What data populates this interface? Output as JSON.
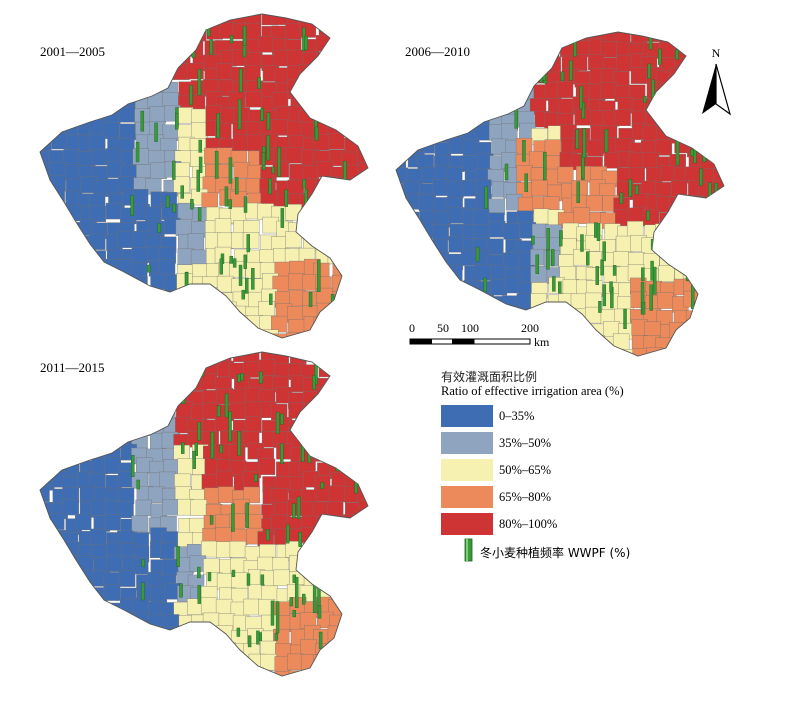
{
  "maps": [
    {
      "period": "2001—2005"
    },
    {
      "period": "2006—2010"
    },
    {
      "period": "2011—2015"
    }
  ],
  "north_arrow": {
    "label": "N"
  },
  "scale_bar": {
    "ticks": [
      "0",
      "50",
      "100",
      "200"
    ],
    "unit": "km"
  },
  "legend": {
    "title_cn": "有效灌溉面积比例",
    "title_en": "Ratio of effective irrigation area (%)",
    "classes": [
      {
        "label": "0–35%",
        "color": "#3f6db3"
      },
      {
        "label": "35%–50%",
        "color": "#8fa4be"
      },
      {
        "label": "50%–65%",
        "color": "#f6f1b0"
      },
      {
        "label": "65%–80%",
        "color": "#ec8a5c"
      },
      {
        "label": "80%–100%",
        "color": "#cf3434"
      }
    ],
    "bar_symbol": {
      "label": "冬小麦种植频率 WWPF (%)",
      "color": "#3a9a3a"
    }
  }
}
